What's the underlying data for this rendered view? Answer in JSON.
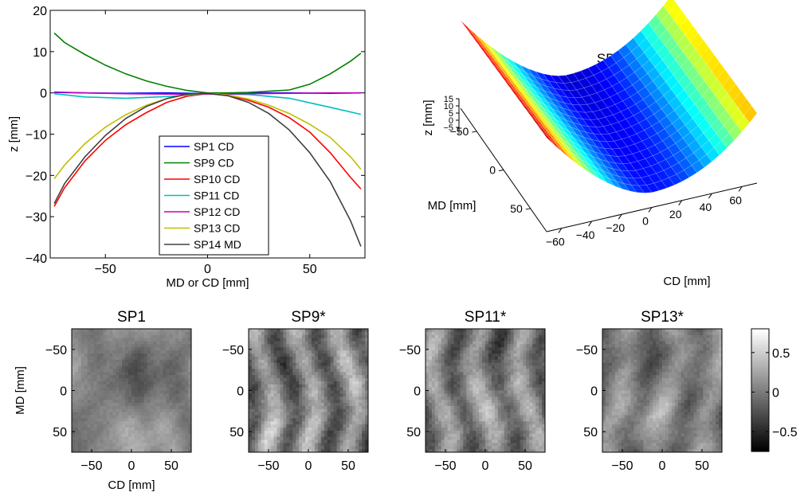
{
  "chart_data": [
    {
      "type": "line",
      "title": "",
      "xlabel": "MD or CD [mm]",
      "ylabel": "z [mm]",
      "xlim": [
        -77,
        77
      ],
      "ylim": [
        -40,
        20
      ],
      "xticks": [
        -50,
        0,
        50
      ],
      "xtick_labels": [
        "−50",
        "0",
        "50"
      ],
      "yticks": [
        20,
        10,
        0,
        -10,
        -20,
        -30,
        -40
      ],
      "ytick_labels": [
        "20",
        "10",
        "0",
        "−10",
        "−20",
        "−30",
        "−40"
      ],
      "legend_position": "bottom-center",
      "series": [
        {
          "name": "SP1 CD",
          "color": "#0000ff",
          "x": [
            -75,
            -60,
            -40,
            -20,
            0,
            20,
            40,
            60,
            75
          ],
          "y": [
            0.1,
            0.0,
            -0.1,
            0.0,
            -0.2,
            0.0,
            0.0,
            -0.1,
            0.0
          ]
        },
        {
          "name": "SP9 CD",
          "color": "#008000",
          "x": [
            -75,
            -70,
            -60,
            -50,
            -40,
            -30,
            -20,
            -10,
            0,
            10,
            20,
            30,
            40,
            50,
            60,
            70,
            75
          ],
          "y": [
            14.5,
            12.2,
            9.3,
            6.7,
            4.6,
            2.9,
            1.6,
            0.6,
            0.0,
            0.0,
            0.1,
            0.4,
            0.7,
            2.1,
            4.6,
            7.7,
            9.6
          ]
        },
        {
          "name": "SP10 CD",
          "color": "#ff0000",
          "x": [
            -75,
            -70,
            -60,
            -50,
            -40,
            -30,
            -20,
            -10,
            0,
            10,
            20,
            30,
            40,
            50,
            60,
            70,
            75
          ],
          "y": [
            -27.5,
            -23.0,
            -16.5,
            -11.5,
            -7.7,
            -4.8,
            -2.3,
            -0.8,
            -0.2,
            -0.6,
            -1.8,
            -3.5,
            -6.0,
            -9.5,
            -14.5,
            -20.5,
            -23.3
          ]
        },
        {
          "name": "SP11 CD",
          "color": "#00bfbf",
          "x": [
            -75,
            -60,
            -40,
            -20,
            0,
            20,
            40,
            60,
            75
          ],
          "y": [
            -0.2,
            -1.0,
            -1.3,
            -0.9,
            -0.2,
            -0.4,
            -1.3,
            -3.5,
            -5.2
          ]
        },
        {
          "name": "SP12 CD",
          "color": "#bf00bf",
          "x": [
            -75,
            -60,
            -40,
            -20,
            0,
            20,
            40,
            60,
            75
          ],
          "y": [
            0.2,
            0.0,
            -0.2,
            -0.3,
            -0.3,
            -0.2,
            -0.1,
            0.0,
            0.0
          ]
        },
        {
          "name": "SP13 CD",
          "color": "#bfbf00",
          "x": [
            -75,
            -70,
            -60,
            -50,
            -40,
            -30,
            -20,
            -10,
            0,
            10,
            20,
            30,
            40,
            50,
            60,
            70,
            75
          ],
          "y": [
            -20.8,
            -17.5,
            -12.3,
            -8.3,
            -5.3,
            -3.0,
            -1.4,
            -0.4,
            -0.1,
            -0.5,
            -1.5,
            -3.0,
            -5.0,
            -7.6,
            -10.8,
            -15.5,
            -18.5
          ]
        },
        {
          "name": "SP14 MD",
          "color": "#404040",
          "x": [
            -75,
            -70,
            -60,
            -50,
            -40,
            -30,
            -20,
            -10,
            0,
            10,
            20,
            30,
            40,
            50,
            60,
            70,
            75
          ],
          "y": [
            -26.8,
            -22.0,
            -15.5,
            -10.3,
            -6.2,
            -3.3,
            -1.4,
            -0.3,
            -0.1,
            -0.7,
            -2.3,
            -5.0,
            -9.0,
            -14.5,
            -21.5,
            -31.0,
            -37.2
          ]
        }
      ]
    },
    {
      "type": "surface",
      "title": "SP9",
      "xlabel": "CD [mm]",
      "ylabel": "MD [mm]",
      "zlabel": "z [mm]",
      "xticks": [
        -60,
        -40,
        -20,
        0,
        20,
        40,
        60
      ],
      "xtick_labels": [
        "−60",
        "−40",
        "−20",
        "0",
        "20",
        "40",
        "60"
      ],
      "yticks": [
        50,
        0,
        -50
      ],
      "ytick_labels": [
        "50",
        "0",
        "−50"
      ],
      "zticks": [
        15,
        10,
        5,
        0,
        -5
      ],
      "ztick_labels": [
        "15",
        "10",
        "5",
        "0",
        "−5"
      ],
      "colormap": "jet"
    },
    {
      "type": "heatmap",
      "panels": [
        {
          "title": "SP1",
          "seed": 3,
          "stripes": 0.2,
          "contrast": 0.55
        },
        {
          "title": "SP9*",
          "seed": 11,
          "stripes": 0.75,
          "contrast": 1.0
        },
        {
          "title": "SP11*",
          "seed": 17,
          "stripes": 0.7,
          "contrast": 0.95
        },
        {
          "title": "SP13*",
          "seed": 29,
          "stripes": 0.55,
          "contrast": 0.75
        }
      ],
      "xlabel": "CD [mm]",
      "ylabel": "MD [mm]",
      "xticks": [
        -50,
        0,
        50
      ],
      "xtick_labels": [
        "−50",
        "0",
        "50"
      ],
      "yticks": [
        -50,
        0,
        50
      ],
      "ytick_labels": [
        "−50",
        "0",
        "50"
      ],
      "colorbar_ticks": [
        0.5,
        0,
        -0.5
      ],
      "colorbar_tick_labels": [
        "0.5",
        "0",
        "−0.5"
      ],
      "colorbar_range": [
        -0.75,
        0.8
      ],
      "colormap": "gray"
    }
  ]
}
